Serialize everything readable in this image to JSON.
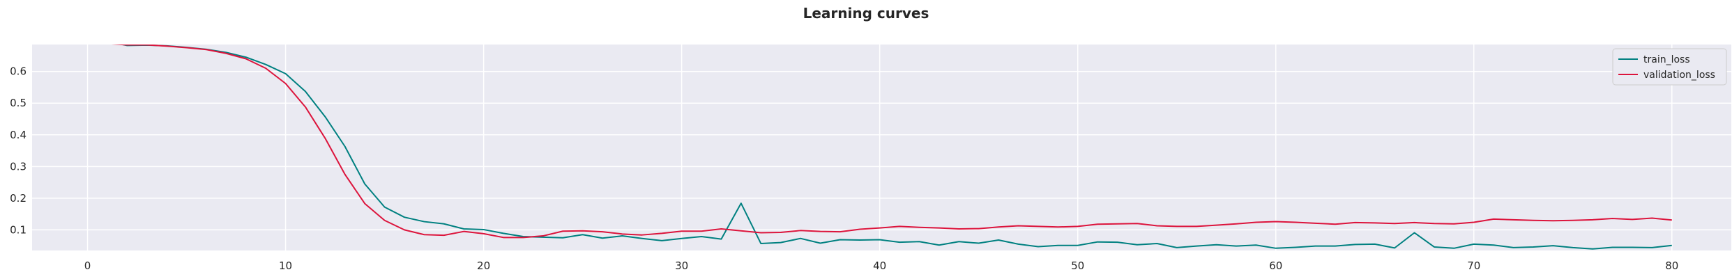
{
  "chart_data": {
    "type": "line",
    "title": "Learning curves",
    "xlabel": "",
    "ylabel": "",
    "xlim": [
      -2.8,
      83.0
    ],
    "ylim": [
      0.035,
      0.685
    ],
    "x_ticks": [
      0,
      10,
      20,
      30,
      40,
      50,
      60,
      70,
      80
    ],
    "y_ticks": [
      0.1,
      0.2,
      0.3,
      0.4,
      0.5,
      0.6
    ],
    "grid": true,
    "legend_position": "top-right",
    "x": [
      0,
      1,
      2,
      3,
      4,
      5,
      6,
      7,
      8,
      9,
      10,
      11,
      12,
      13,
      14,
      15,
      16,
      17,
      18,
      19,
      20,
      21,
      22,
      23,
      24,
      25,
      26,
      27,
      28,
      29,
      30,
      31,
      32,
      33,
      34,
      35,
      36,
      37,
      38,
      39,
      40,
      41,
      42,
      43,
      44,
      45,
      46,
      47,
      48,
      49,
      50,
      51,
      52,
      53,
      54,
      55,
      56,
      57,
      58,
      59,
      60,
      61,
      62,
      63,
      64,
      65,
      66,
      67,
      68,
      69,
      70,
      71,
      72,
      73,
      74,
      75,
      76,
      77,
      78,
      79,
      80
    ],
    "series": [
      {
        "name": "train_loss",
        "color": "#008080",
        "values": [
          0.71,
          0.695,
          0.682,
          0.683,
          0.681,
          0.676,
          0.67,
          0.66,
          0.645,
          0.622,
          0.593,
          0.537,
          0.457,
          0.363,
          0.245,
          0.172,
          0.14,
          0.126,
          0.119,
          0.103,
          0.101,
          0.089,
          0.079,
          0.077,
          0.075,
          0.085,
          0.074,
          0.081,
          0.073,
          0.066,
          0.073,
          0.079,
          0.071,
          0.184,
          0.057,
          0.06,
          0.073,
          0.058,
          0.069,
          0.068,
          0.069,
          0.061,
          0.063,
          0.052,
          0.063,
          0.058,
          0.068,
          0.055,
          0.047,
          0.051,
          0.051,
          0.062,
          0.061,
          0.053,
          0.057,
          0.044,
          0.049,
          0.053,
          0.049,
          0.052,
          0.042,
          0.045,
          0.049,
          0.049,
          0.054,
          0.055,
          0.043,
          0.091,
          0.046,
          0.042,
          0.055,
          0.052,
          0.044,
          0.046,
          0.05,
          0.044,
          0.04,
          0.045,
          0.045,
          0.044,
          0.051
        ]
      },
      {
        "name": "validation_loss",
        "color": "#dc143c",
        "values": [
          0.7,
          0.688,
          0.684,
          0.684,
          0.68,
          0.675,
          0.669,
          0.657,
          0.64,
          0.61,
          0.562,
          0.488,
          0.389,
          0.275,
          0.183,
          0.13,
          0.1,
          0.085,
          0.083,
          0.095,
          0.088,
          0.076,
          0.076,
          0.081,
          0.096,
          0.097,
          0.094,
          0.087,
          0.084,
          0.089,
          0.096,
          0.096,
          0.103,
          0.097,
          0.091,
          0.092,
          0.098,
          0.095,
          0.094,
          0.102,
          0.106,
          0.111,
          0.108,
          0.106,
          0.103,
          0.104,
          0.109,
          0.113,
          0.111,
          0.109,
          0.111,
          0.118,
          0.119,
          0.12,
          0.113,
          0.111,
          0.111,
          0.115,
          0.119,
          0.124,
          0.126,
          0.124,
          0.121,
          0.118,
          0.123,
          0.122,
          0.12,
          0.123,
          0.12,
          0.119,
          0.124,
          0.134,
          0.132,
          0.13,
          0.129,
          0.13,
          0.132,
          0.136,
          0.133,
          0.137,
          0.131
        ]
      }
    ]
  }
}
